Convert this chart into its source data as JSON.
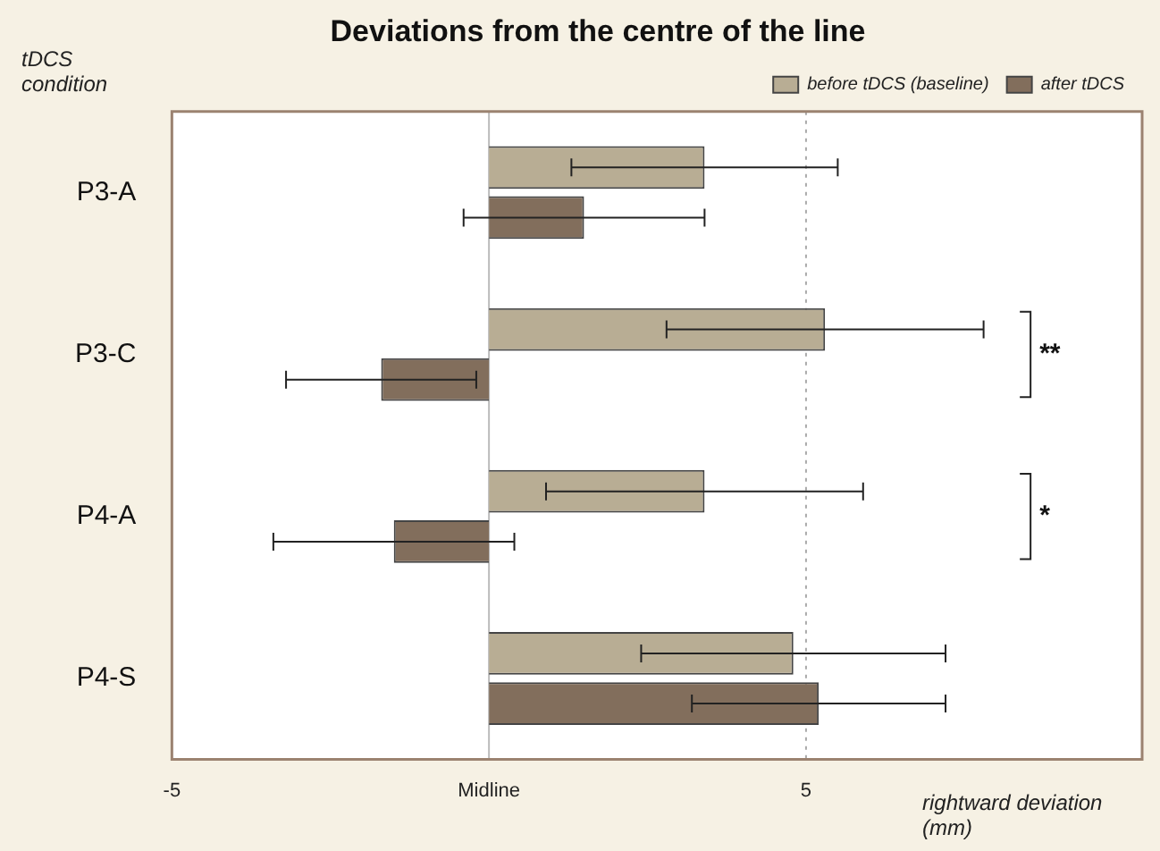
{
  "chart_data": {
    "type": "bar",
    "orientation": "horizontal",
    "title": "Deviations from the centre of the line",
    "ylabel": "tDCS condition",
    "xlabel": "rightward deviation (mm)",
    "categories": [
      "P3-A",
      "P3-C",
      "P4-A",
      "P4-S"
    ],
    "series": [
      {
        "name": "before tDCS (baseline)",
        "color": "#b8ad94",
        "values": [
          3.4,
          5.3,
          3.4,
          4.8
        ],
        "errors": [
          2.1,
          2.5,
          2.5,
          2.4
        ]
      },
      {
        "name": "after tDCS",
        "color": "#826e5c",
        "values": [
          1.5,
          -1.7,
          -1.5,
          5.2
        ],
        "errors": [
          1.9,
          1.5,
          1.9,
          2.0
        ]
      }
    ],
    "xlim": [
      -5,
      10.3
    ],
    "xticks": [
      -5,
      {
        "value": 0,
        "label": "Midline"
      },
      5
    ],
    "ref_lines": [
      {
        "axis": "x",
        "value": 0,
        "color": "#bbbbbb",
        "line_style": "solid"
      },
      {
        "axis": "x",
        "value": 5,
        "color": "#aaaaaa",
        "line_style": "dotted"
      }
    ],
    "annotations": [
      "**",
      "*"
    ],
    "grid": false,
    "legend": "top right"
  }
}
